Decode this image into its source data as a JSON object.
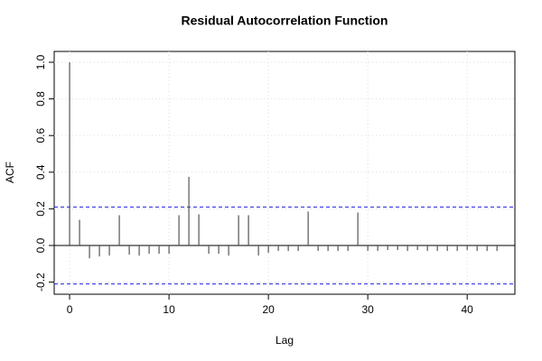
{
  "chart_data": {
    "type": "acf",
    "title": "Residual Autocorrelation Function",
    "x_label": "Lag",
    "y_label": "ACF",
    "x": [
      0,
      1,
      2,
      3,
      4,
      5,
      6,
      7,
      8,
      9,
      10,
      11,
      12,
      13,
      14,
      15,
      16,
      17,
      18,
      19,
      20,
      21,
      22,
      23,
      24,
      25,
      26,
      27,
      28,
      29,
      30,
      31,
      32,
      33,
      34,
      35,
      36,
      37,
      38,
      39,
      40,
      41,
      42,
      43
    ],
    "values": [
      1.0,
      0.14,
      -0.07,
      -0.06,
      -0.055,
      0.165,
      -0.05,
      -0.055,
      -0.045,
      -0.045,
      -0.045,
      0.165,
      0.375,
      0.17,
      -0.045,
      -0.045,
      -0.055,
      0.165,
      0.165,
      -0.055,
      -0.04,
      -0.03,
      -0.03,
      -0.03,
      0.185,
      -0.03,
      -0.03,
      -0.03,
      -0.03,
      0.18,
      -0.03,
      -0.03,
      -0.025,
      -0.025,
      -0.03,
      -0.025,
      -0.03,
      -0.03,
      -0.03,
      -0.03,
      -0.025,
      -0.03,
      -0.03,
      -0.03
    ],
    "color": "#555555",
    "ci_lines": [
      0.21,
      -0.21
    ],
    "ci_color": "#2222dd",
    "xlim": [
      -1.55,
      44.8
    ],
    "ylim": [
      -0.266,
      1.059
    ],
    "xticks": [
      0,
      10,
      20,
      30,
      40
    ],
    "yticks": [
      -0.2,
      {
        "value": 0,
        "label": "0.0"
      },
      0.2,
      0.4,
      0.6,
      0.8,
      {
        "value": 1,
        "label": "1.0"
      }
    ],
    "grid": true
  }
}
